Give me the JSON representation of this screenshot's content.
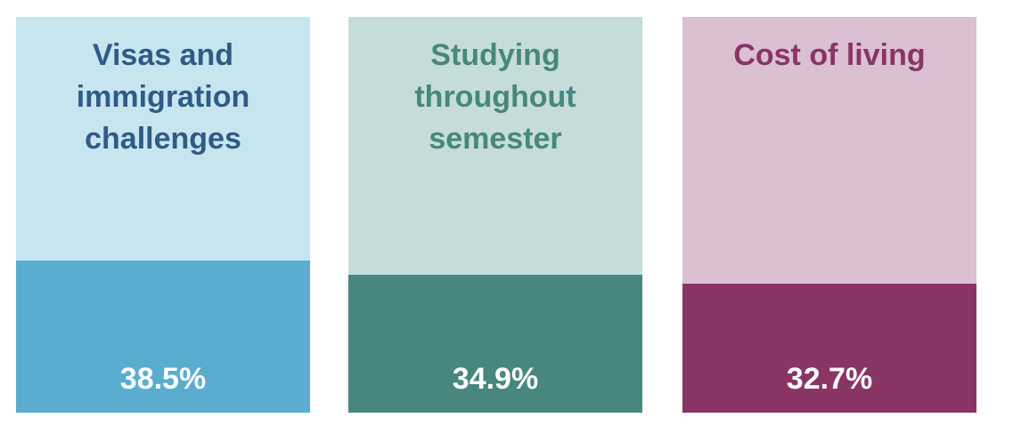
{
  "chart_data": {
    "type": "bar",
    "categories": [
      "Visas and immigration challenges",
      "Studying throughout semester",
      "Cost of living"
    ],
    "values": [
      38.5,
      34.9,
      32.7
    ],
    "value_labels": [
      "38.5%",
      "34.9%",
      "32.7%"
    ],
    "colors": [
      "#5aadcf",
      "#47877e",
      "#883566"
    ],
    "background_colors": [
      "#c6e5ef",
      "#c5dcdb",
      "#dbbfd2"
    ],
    "label_colors": [
      "#2f5b86",
      "#47877e",
      "#883566"
    ],
    "ylim": [
      0,
      100
    ]
  }
}
